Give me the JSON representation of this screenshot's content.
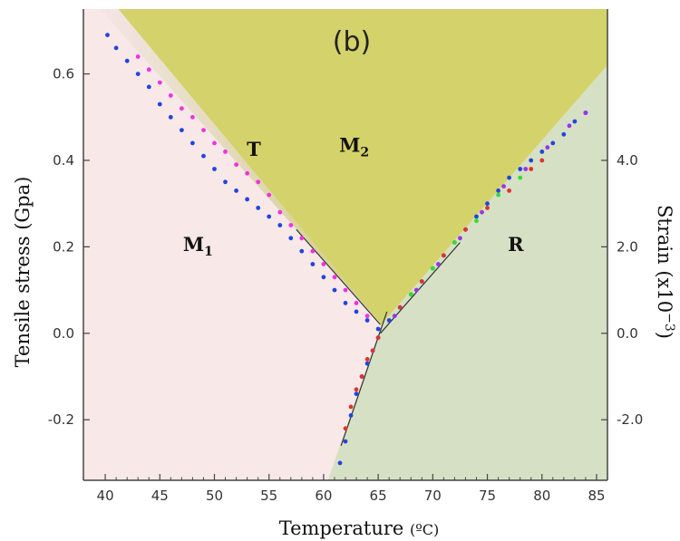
{
  "chart_data": {
    "type": "scatter",
    "panel_label": "(b)",
    "xlabel": "Temperature",
    "xlabel_unit": "(ºC)",
    "ylabel": "Tensile stress (Gpa)",
    "y2label": "Strain (x10",
    "y2label_exp": "−3",
    "y2label_close": ")",
    "xlim": [
      38,
      86
    ],
    "ylim": [
      -0.34,
      0.75
    ],
    "x_ticks": [
      "40",
      "45",
      "50",
      "55",
      "60",
      "65",
      "70",
      "75",
      "80",
      "85"
    ],
    "y_ticks": [
      "-0.2",
      "0.0",
      "0.2",
      "0.4",
      "0.6"
    ],
    "y2_ticks": [
      "-2.0",
      "0.0",
      "2.0",
      "4.0"
    ],
    "regions": [
      {
        "label": "M",
        "sub": "1",
        "color": "#f8e8e8"
      },
      {
        "label": "T",
        "sub": "",
        "color": "#d4d0a8"
      },
      {
        "label": "M",
        "sub": "2",
        "color": "#d4d26a"
      },
      {
        "label": "R",
        "sub": "",
        "color": "#d6e0c4"
      }
    ],
    "series": [
      {
        "color": "#2244dd",
        "x": [
          40.2,
          41,
          42,
          43,
          44,
          45,
          46,
          47,
          48,
          49,
          50,
          51,
          52,
          53,
          54,
          55,
          56,
          57,
          58,
          59,
          60,
          61,
          62,
          63,
          64,
          65
        ],
        "y": [
          0.69,
          0.66,
          0.63,
          0.6,
          0.57,
          0.53,
          0.5,
          0.47,
          0.44,
          0.41,
          0.38,
          0.35,
          0.33,
          0.31,
          0.29,
          0.27,
          0.25,
          0.22,
          0.19,
          0.16,
          0.13,
          0.1,
          0.07,
          0.05,
          0.03,
          0.01
        ]
      },
      {
        "color": "#ee33dd",
        "x": [
          43,
          44,
          45,
          46,
          47,
          48,
          49,
          50,
          51,
          52,
          53,
          54,
          55,
          56,
          57,
          58,
          59,
          60,
          61,
          62,
          63,
          64
        ],
        "y": [
          0.64,
          0.61,
          0.58,
          0.55,
          0.52,
          0.5,
          0.47,
          0.44,
          0.42,
          0.39,
          0.37,
          0.35,
          0.32,
          0.28,
          0.25,
          0.22,
          0.19,
          0.16,
          0.13,
          0.1,
          0.07,
          0.04
        ]
      },
      {
        "color": "#2244dd",
        "x": [
          61.5,
          62,
          62.5,
          63,
          63.5,
          64,
          64.5,
          65
        ],
        "y": [
          -0.3,
          -0.25,
          -0.19,
          -0.14,
          -0.1,
          -0.07,
          -0.04,
          -0.01
        ]
      },
      {
        "color": "#dd3333",
        "x": [
          62,
          62.5,
          63,
          63.5,
          64,
          64.5,
          65
        ],
        "y": [
          -0.22,
          -0.17,
          -0.13,
          -0.1,
          -0.06,
          -0.04,
          -0.01
        ]
      },
      {
        "color": "#2244dd",
        "x": [
          66,
          67,
          68,
          69,
          70,
          71,
          72,
          73,
          74,
          75,
          76,
          77,
          78,
          79,
          80,
          81,
          82,
          83,
          84
        ],
        "y": [
          0.03,
          0.06,
          0.09,
          0.12,
          0.15,
          0.18,
          0.21,
          0.24,
          0.27,
          0.3,
          0.33,
          0.36,
          0.38,
          0.4,
          0.42,
          0.44,
          0.46,
          0.49,
          0.51
        ]
      },
      {
        "color": "#dd3333",
        "x": [
          67,
          69,
          71,
          73,
          75,
          77,
          79,
          80
        ],
        "y": [
          0.06,
          0.12,
          0.18,
          0.24,
          0.29,
          0.33,
          0.38,
          0.4
        ]
      },
      {
        "color": "#33dd33",
        "x": [
          68,
          70,
          72,
          74,
          76,
          78
        ],
        "y": [
          0.09,
          0.15,
          0.21,
          0.26,
          0.32,
          0.36
        ]
      },
      {
        "color": "#9933ee",
        "x": [
          66.5,
          68.5,
          70.5,
          72.5,
          74.5,
          76.5,
          78.5,
          80.5,
          82.5,
          84
        ],
        "y": [
          0.04,
          0.1,
          0.16,
          0.22,
          0.28,
          0.34,
          0.38,
          0.43,
          0.48,
          0.51
        ]
      }
    ]
  }
}
